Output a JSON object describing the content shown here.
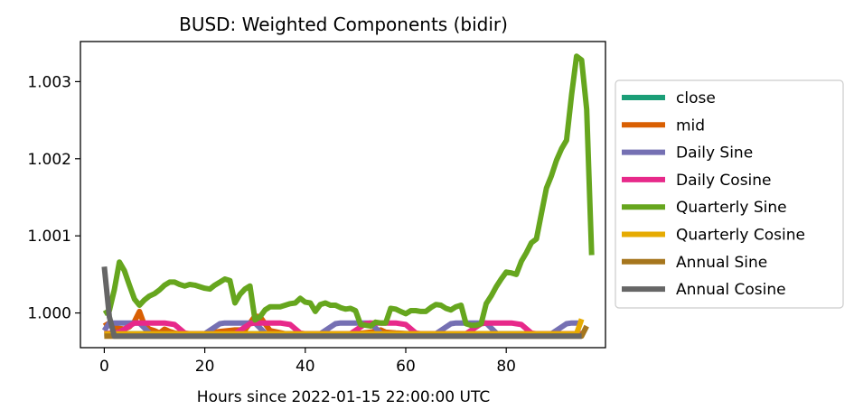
{
  "chart_data": {
    "type": "line",
    "title": "BUSD: Weighted Components (bidir)",
    "xlabel": "Hours since 2022-01-15 22:00:00 UTC",
    "ylabel": "",
    "xlim": [
      -4.75,
      99.75
    ],
    "ylim": [
      0.99955,
      1.00352
    ],
    "xticks": [
      0,
      20,
      40,
      60,
      80
    ],
    "yticks": [
      1.0,
      1.001,
      1.002,
      1.003
    ],
    "ytick_labels": [
      "1.000",
      "1.001",
      "1.002",
      "1.003"
    ],
    "grid": false,
    "legend_position": "outside-right",
    "series": [
      {
        "name": "close",
        "color": "#1b9e77",
        "points": [
          [
            0,
            0.99973
          ],
          [
            95,
            0.99973
          ]
        ]
      },
      {
        "name": "mid",
        "color": "#d95f02",
        "points": [
          [
            0,
            0.99983
          ],
          [
            1,
            0.99987
          ],
          [
            2,
            0.99981
          ],
          [
            3,
            0.9998
          ],
          [
            4,
            0.99979
          ],
          [
            5,
            0.99982
          ],
          [
            6,
            0.99989
          ],
          [
            7,
            1.00002
          ],
          [
            8,
            0.99984
          ],
          [
            9,
            0.99979
          ],
          [
            10,
            0.99977
          ],
          [
            11,
            0.99974
          ],
          [
            12,
            0.99979
          ],
          [
            13,
            0.99976
          ],
          [
            14,
            0.99974
          ],
          [
            15,
            0.99973
          ],
          [
            20,
            0.99973
          ],
          [
            23,
            0.99976
          ],
          [
            26,
            0.99978
          ],
          [
            28,
            0.99978
          ],
          [
            30,
            0.99996
          ],
          [
            31,
            0.99995
          ],
          [
            33,
            0.99977
          ],
          [
            36,
            0.99973
          ],
          [
            50,
            0.99973
          ],
          [
            53,
            0.99975
          ],
          [
            55,
            0.99978
          ],
          [
            56,
            0.99975
          ],
          [
            58,
            0.99974
          ],
          [
            61,
            0.99973
          ],
          [
            95,
            0.99973
          ]
        ]
      },
      {
        "name": "Daily Sine",
        "color": "#7570b3",
        "points": [
          [
            0,
            0.99977
          ],
          [
            1,
            0.99987
          ],
          [
            7,
            0.99987
          ],
          [
            9,
            0.99974
          ],
          [
            10,
            0.99973
          ],
          [
            20,
            0.99973
          ],
          [
            23,
            0.99986
          ],
          [
            24,
            0.99987
          ],
          [
            30,
            0.99987
          ],
          [
            32,
            0.99974
          ],
          [
            33,
            0.99973
          ],
          [
            43,
            0.99973
          ],
          [
            46,
            0.99986
          ],
          [
            47,
            0.99987
          ],
          [
            53,
            0.99987
          ],
          [
            55,
            0.99974
          ],
          [
            56,
            0.99973
          ],
          [
            66,
            0.99973
          ],
          [
            69,
            0.99986
          ],
          [
            70,
            0.99987
          ],
          [
            76,
            0.99987
          ],
          [
            78,
            0.99974
          ],
          [
            79,
            0.99973
          ],
          [
            89,
            0.99973
          ],
          [
            92,
            0.99986
          ],
          [
            93,
            0.99987
          ],
          [
            95,
            0.99987
          ]
        ]
      },
      {
        "name": "Daily Cosine",
        "color": "#e7298a",
        "points": [
          [
            0,
            0.99973
          ],
          [
            3,
            0.99975
          ],
          [
            5,
            0.99983
          ],
          [
            6,
            0.99987
          ],
          [
            12,
            0.99987
          ],
          [
            14,
            0.99985
          ],
          [
            16,
            0.99974
          ],
          [
            17,
            0.99973
          ],
          [
            26,
            0.99973
          ],
          [
            29,
            0.99986
          ],
          [
            30,
            0.99987
          ],
          [
            35,
            0.99987
          ],
          [
            37,
            0.99985
          ],
          [
            39,
            0.99974
          ],
          [
            40,
            0.99973
          ],
          [
            49,
            0.99973
          ],
          [
            52,
            0.99986
          ],
          [
            53,
            0.99987
          ],
          [
            58,
            0.99987
          ],
          [
            60,
            0.99985
          ],
          [
            62,
            0.99974
          ],
          [
            63,
            0.99973
          ],
          [
            72,
            0.99973
          ],
          [
            75,
            0.99986
          ],
          [
            76,
            0.99987
          ],
          [
            81,
            0.99987
          ],
          [
            83,
            0.99985
          ],
          [
            85,
            0.99974
          ],
          [
            86,
            0.99973
          ],
          [
            95,
            0.99973
          ]
        ]
      },
      {
        "name": "Quarterly Sine",
        "color": "#66a61e",
        "points": [
          [
            0,
            0.99999
          ],
          [
            1,
            1.00003
          ],
          [
            2,
            1.0003
          ],
          [
            3,
            1.00066
          ],
          [
            4,
            1.00055
          ],
          [
            5,
            1.00036
          ],
          [
            6,
            1.00018
          ],
          [
            7,
            1.0001
          ],
          [
            8,
            1.00017
          ],
          [
            9,
            1.00022
          ],
          [
            10,
            1.00025
          ],
          [
            11,
            1.0003
          ],
          [
            12,
            1.00036
          ],
          [
            13,
            1.0004
          ],
          [
            14,
            1.0004
          ],
          [
            15,
            1.00037
          ],
          [
            16,
            1.00035
          ],
          [
            17,
            1.00037
          ],
          [
            18,
            1.00036
          ],
          [
            19,
            1.00034
          ],
          [
            20,
            1.00032
          ],
          [
            21,
            1.00031
          ],
          [
            22,
            1.00036
          ],
          [
            23,
            1.0004
          ],
          [
            24,
            1.00044
          ],
          [
            25,
            1.00042
          ],
          [
            26,
            1.00013
          ],
          [
            27,
            1.00024
          ],
          [
            28,
            1.00031
          ],
          [
            29,
            1.00035
          ],
          [
            30,
            0.99991
          ],
          [
            31,
            0.99995
          ],
          [
            32,
            1.00004
          ],
          [
            33,
            1.00008
          ],
          [
            34,
            1.00008
          ],
          [
            35,
            1.00008
          ],
          [
            36,
            1.0001
          ],
          [
            37,
            1.00012
          ],
          [
            38,
            1.00013
          ],
          [
            39,
            1.00019
          ],
          [
            40,
            1.00014
          ],
          [
            41,
            1.00013
          ],
          [
            42,
            1.00002
          ],
          [
            43,
            1.00011
          ],
          [
            44,
            1.00013
          ],
          [
            45,
            1.0001
          ],
          [
            46,
            1.0001
          ],
          [
            47,
            1.00007
          ],
          [
            48,
            1.00005
          ],
          [
            49,
            1.00006
          ],
          [
            50,
            1.00003
          ],
          [
            51,
            0.99985
          ],
          [
            52,
            0.99984
          ],
          [
            53,
            0.99983
          ],
          [
            54,
            0.99988
          ],
          [
            55,
            0.99987
          ],
          [
            56,
            0.99987
          ],
          [
            57,
            1.00006
          ],
          [
            58,
            1.00005
          ],
          [
            59,
            1.00002
          ],
          [
            60,
            0.99999
          ],
          [
            61,
            1.00003
          ],
          [
            62,
            1.00003
          ],
          [
            63,
            1.00002
          ],
          [
            64,
            1.00002
          ],
          [
            65,
            1.00007
          ],
          [
            66,
            1.00011
          ],
          [
            67,
            1.0001
          ],
          [
            68,
            1.00006
          ],
          [
            69,
            1.00004
          ],
          [
            70,
            1.00008
          ],
          [
            71,
            1.0001
          ],
          [
            72,
            0.99986
          ],
          [
            73,
            0.99984
          ],
          [
            74,
            0.99984
          ],
          [
            75,
            0.99986
          ],
          [
            76,
            1.00012
          ],
          [
            77,
            1.00022
          ],
          [
            78,
            1.00034
          ],
          [
            79,
            1.00044
          ],
          [
            80,
            1.00053
          ],
          [
            81,
            1.00052
          ],
          [
            82,
            1.0005
          ],
          [
            83,
            1.00067
          ],
          [
            84,
            1.00078
          ],
          [
            85,
            1.00091
          ],
          [
            86,
            1.00096
          ],
          [
            87,
            1.00129
          ],
          [
            88,
            1.00162
          ],
          [
            89,
            1.00178
          ],
          [
            90,
            1.00198
          ],
          [
            91,
            1.00213
          ],
          [
            92,
            1.00224
          ],
          [
            93,
            1.00283
          ],
          [
            94,
            1.00333
          ],
          [
            95,
            1.00328
          ],
          [
            96,
            1.00264
          ],
          [
            97,
            1.00075
          ]
        ]
      },
      {
        "name": "Quarterly Cosine",
        "color": "#e6ab02",
        "points": [
          [
            0,
            0.99973
          ],
          [
            94,
            0.99973
          ],
          [
            95,
            0.99992
          ]
        ]
      },
      {
        "name": "Annual Sine",
        "color": "#a6761d",
        "points": [
          [
            0,
            0.9997
          ],
          [
            95,
            0.9997
          ],
          [
            96,
            0.99983
          ]
        ]
      },
      {
        "name": "Annual Cosine",
        "color": "#666666",
        "points": [
          [
            0,
            1.0006
          ],
          [
            1,
            0.99995
          ],
          [
            2,
            0.9997
          ],
          [
            95,
            0.9997
          ]
        ]
      }
    ]
  }
}
